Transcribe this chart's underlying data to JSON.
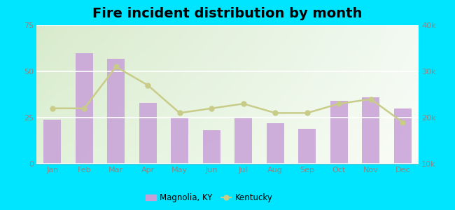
{
  "title": "Fire incident distribution by month",
  "months": [
    "Jan",
    "Feb",
    "Mar",
    "Apr",
    "May",
    "Jun",
    "Jul",
    "Aug",
    "Sep",
    "Oct",
    "Nov",
    "Dec"
  ],
  "bar_values": [
    24,
    60,
    57,
    33,
    25,
    18,
    25,
    22,
    19,
    34,
    36,
    30
  ],
  "line_values": [
    22000,
    22000,
    31000,
    27000,
    21000,
    22000,
    23000,
    21000,
    21000,
    23000,
    24000,
    19000
  ],
  "bar_color": "#c8a0d8",
  "line_color": "#c8cc88",
  "line_marker": "o",
  "left_ylim": [
    0,
    75
  ],
  "right_ylim": [
    10000,
    40000
  ],
  "left_yticks": [
    0,
    25,
    50,
    75
  ],
  "right_yticks": [
    10000,
    20000,
    30000,
    40000
  ],
  "right_yticklabels": [
    "10k",
    "20k",
    "30k",
    "40k"
  ],
  "outer_bg": "#00e5ff",
  "title_fontsize": 14,
  "legend_label_bar": "Magnolia, KY",
  "legend_label_line": "Kentucky",
  "tick_color": "#888888"
}
